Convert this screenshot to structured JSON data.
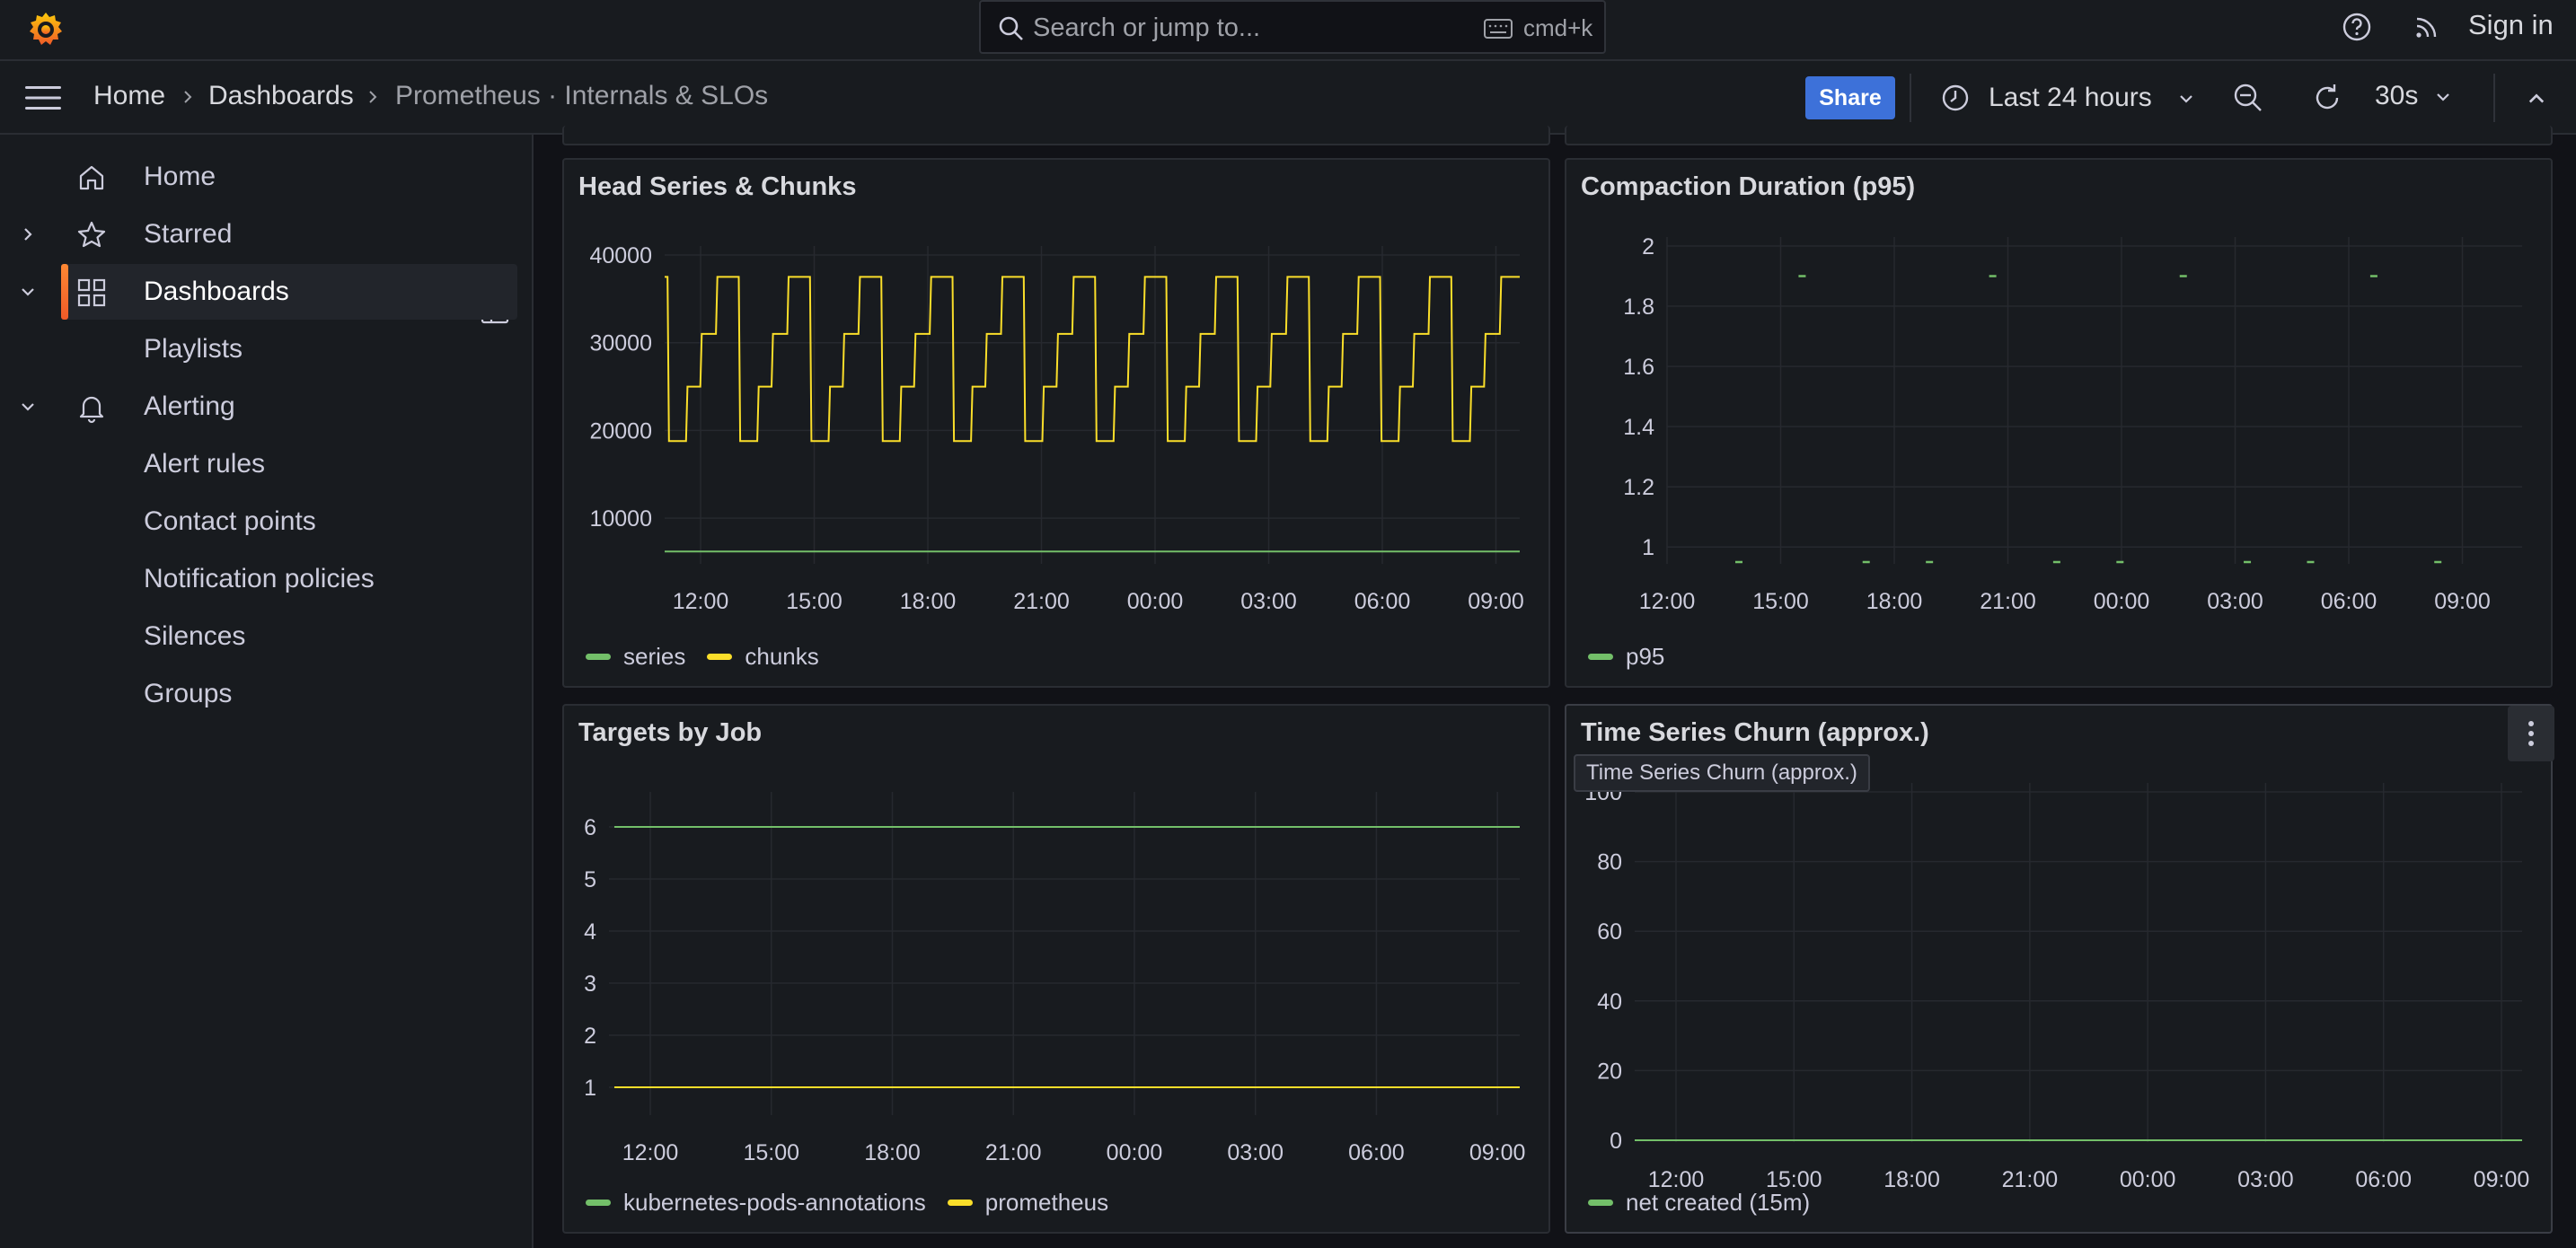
{
  "topbar": {
    "search_placeholder": "Search or jump to...",
    "search_shortcut": "cmd+k",
    "sign_in": "Sign in"
  },
  "breadcrumb": [
    "Home",
    "Dashboards",
    "Prometheus · Internals & SLOs"
  ],
  "toolbar": {
    "share_label": "Share",
    "time_range": "Last 24 hours",
    "refresh_interval": "30s"
  },
  "sidebar": {
    "items": [
      {
        "label": "Home",
        "icon": "home-icon"
      },
      {
        "label": "Starred",
        "icon": "star-icon"
      },
      {
        "label": "Dashboards",
        "icon": "apps-icon"
      },
      {
        "label": "Playlists"
      },
      {
        "label": "Alerting",
        "icon": "bell-icon"
      },
      {
        "label": "Alert rules"
      },
      {
        "label": "Contact points"
      },
      {
        "label": "Notification policies"
      },
      {
        "label": "Silences"
      },
      {
        "label": "Groups"
      }
    ]
  },
  "colors": {
    "accent": "#f05a28",
    "share": "#3d71d9",
    "green": "#73bf69",
    "yellow": "#fade2a"
  },
  "tooltip": "Time Series Churn (approx.)",
  "panels": [
    {
      "title": "Head Series & Chunks",
      "legend": [
        {
          "name": "series",
          "color": "#73bf69"
        },
        {
          "name": "chunks",
          "color": "#fade2a"
        }
      ]
    },
    {
      "title": "Compaction Duration (p95)",
      "legend": [
        {
          "name": "p95",
          "color": "#73bf69"
        }
      ]
    },
    {
      "title": "Targets by Job",
      "legend": [
        {
          "name": "kubernetes-pods-annotations",
          "color": "#73bf69"
        },
        {
          "name": "prometheus",
          "color": "#fade2a"
        }
      ]
    },
    {
      "title": "Time Series Churn (approx.)",
      "legend": [
        {
          "name": "net created (15m)",
          "color": "#73bf69"
        }
      ]
    }
  ],
  "chart_data": [
    {
      "type": "line",
      "title": "Head Series & Chunks",
      "x_ticks": [
        "12:00",
        "15:00",
        "18:00",
        "21:00",
        "00:00",
        "03:00",
        "06:00",
        "09:00"
      ],
      "y_ticks": [
        "10000",
        "20000",
        "30000",
        "40000"
      ],
      "ylim": [
        5000,
        40000
      ],
      "series": [
        {
          "name": "series",
          "pattern": "flat",
          "value": 6200
        },
        {
          "name": "chunks",
          "pattern": "sawtooth-steps",
          "levels": [
            18800,
            25000,
            31000,
            37500
          ],
          "cycles": 12
        }
      ],
      "grid": true,
      "legend_position": "bottom-left"
    },
    {
      "type": "scatter",
      "title": "Compaction Duration (p95)",
      "x_ticks": [
        "12:00",
        "15:00",
        "18:00",
        "21:00",
        "00:00",
        "03:00",
        "06:00",
        "09:00"
      ],
      "y_ticks": [
        "1",
        "1.2",
        "1.4",
        "1.6",
        "1.8",
        "2"
      ],
      "ylim": [
        0.95,
        2.0
      ],
      "series": [
        {
          "name": "p95",
          "high_value": 1.9,
          "low_value": 0.95,
          "pattern": "high-every-3h-then-two-lows"
        }
      ],
      "grid": true,
      "legend_position": "bottom-left"
    },
    {
      "type": "line",
      "title": "Targets by Job",
      "x_ticks": [
        "12:00",
        "15:00",
        "18:00",
        "21:00",
        "00:00",
        "03:00",
        "06:00",
        "09:00"
      ],
      "y_ticks": [
        "1",
        "2",
        "3",
        "4",
        "5",
        "6"
      ],
      "ylim": [
        0.5,
        6.5
      ],
      "series": [
        {
          "name": "kubernetes-pods-annotations",
          "value": 6
        },
        {
          "name": "prometheus",
          "value": 1
        }
      ],
      "grid": true,
      "legend_position": "bottom-left"
    },
    {
      "type": "line",
      "title": "Time Series Churn (approx.)",
      "x_ticks": [
        "12:00",
        "15:00",
        "18:00",
        "21:00",
        "00:00",
        "03:00",
        "06:00",
        "09:00"
      ],
      "y_ticks": [
        "0",
        "20",
        "40",
        "60",
        "80",
        "100"
      ],
      "ylim": [
        0,
        100
      ],
      "series": [
        {
          "name": "net created (15m)",
          "value": 0
        }
      ],
      "grid": true,
      "legend_position": "bottom-left"
    }
  ]
}
